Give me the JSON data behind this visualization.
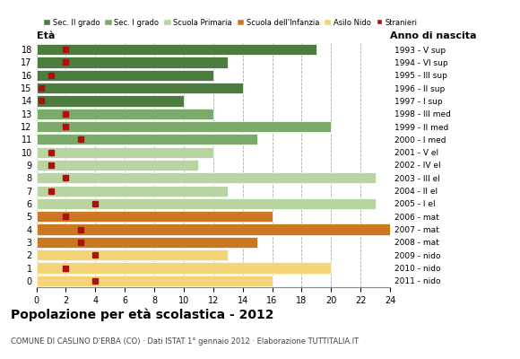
{
  "ages": [
    18,
    17,
    16,
    15,
    14,
    13,
    12,
    11,
    10,
    9,
    8,
    7,
    6,
    5,
    4,
    3,
    2,
    1,
    0
  ],
  "bar_values": [
    19,
    13,
    12,
    14,
    10,
    12,
    20,
    15,
    12,
    11,
    23,
    13,
    23,
    16,
    24,
    15,
    13,
    20,
    16
  ],
  "stranieri": [
    2,
    2,
    1,
    0.3,
    0.3,
    2,
    2,
    3,
    1,
    1,
    2,
    1,
    4,
    2,
    3,
    3,
    4,
    2,
    4
  ],
  "anno_nascita": [
    "1993 - V sup",
    "1994 - VI sup",
    "1995 - III sup",
    "1996 - II sup",
    "1997 - I sup",
    "1998 - III med",
    "1999 - II med",
    "2000 - I med",
    "2001 - V el",
    "2002 - IV el",
    "2003 - III el",
    "2004 - II el",
    "2005 - I el",
    "2006 - mat",
    "2007 - mat",
    "2008 - mat",
    "2009 - nido",
    "2010 - nido",
    "2011 - nido"
  ],
  "bar_colors": [
    "#4d7c3f",
    "#4d7c3f",
    "#4d7c3f",
    "#4d7c3f",
    "#4d7c3f",
    "#7aab6a",
    "#7aab6a",
    "#7aab6a",
    "#b8d4a0",
    "#b8d4a0",
    "#b8d4a0",
    "#b8d4a0",
    "#b8d4a0",
    "#cc7722",
    "#cc7722",
    "#cc7722",
    "#f5d478",
    "#f5d478",
    "#f5d478"
  ],
  "legend_labels": [
    "Sec. II grado",
    "Sec. I grado",
    "Scuola Primaria",
    "Scuola dell'Infanzia",
    "Asilo Nido",
    "Stranieri"
  ],
  "legend_colors": [
    "#4d7c3f",
    "#7aab6a",
    "#b8d4a0",
    "#cc7722",
    "#f5d478",
    "#aa1111"
  ],
  "title": "Popolazione per età scolastica - 2012",
  "subtitle": "COMUNE DI CASLINO D'ERBA (CO) · Dati ISTAT 1° gennaio 2012 · Elaborazione TUTTITALIA.IT",
  "xlabel_eta": "Età",
  "xlabel_anno": "Anno di nascita",
  "xlim": [
    0,
    24
  ],
  "background_color": "#ffffff",
  "stranieri_color": "#aa1111",
  "stranieri_size": 5
}
